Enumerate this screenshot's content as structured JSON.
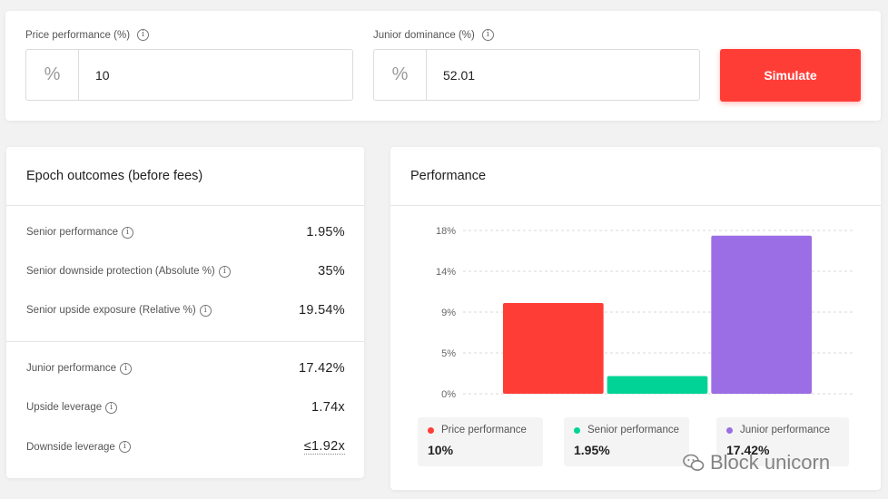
{
  "inputs": {
    "price": {
      "label": "Price performance (%)",
      "prefix": "%",
      "value": "10"
    },
    "junior": {
      "label": "Junior dominance (%)",
      "prefix": "%",
      "value": "52.01"
    }
  },
  "simulate_label": "Simulate",
  "epoch": {
    "title": "Epoch outcomes (before fees)",
    "senior_rows": [
      {
        "label": "Senior performance",
        "value": "1.95%"
      },
      {
        "label": "Senior downside protection (Absolute %)",
        "value": "35%"
      },
      {
        "label": "Senior upside exposure (Relative %)",
        "value": "19.54%"
      }
    ],
    "junior_rows": [
      {
        "label": "Junior performance",
        "value": "17.42%"
      },
      {
        "label": "Upside leverage",
        "value": "1.74x"
      },
      {
        "label": "Downside leverage",
        "value": "≤1.92x"
      }
    ]
  },
  "performance": {
    "title": "Performance",
    "legend": [
      {
        "name": "Price performance",
        "value": "10%",
        "color": "#ff3d37"
      },
      {
        "name": "Senior performance",
        "value": "1.95%",
        "color": "#00d395"
      },
      {
        "name": "Junior performance",
        "value": "17.42%",
        "color": "#9b6ee5"
      }
    ]
  },
  "chart_data": {
    "type": "bar",
    "categories": [
      "Price performance",
      "Senior performance",
      "Junior performance"
    ],
    "values": [
      10,
      1.95,
      17.42
    ],
    "colors": [
      "#ff3d37",
      "#00d395",
      "#9b6ee5"
    ],
    "yticks": [
      "0%",
      "5%",
      "9%",
      "14%",
      "18%"
    ],
    "ytick_values": [
      0,
      4.5,
      9,
      13.5,
      18
    ],
    "ylim": [
      0,
      18
    ],
    "grid": true
  },
  "watermark": "Block unicorn",
  "icons": {
    "info": "info-icon",
    "wechat": "wechat-icon"
  }
}
